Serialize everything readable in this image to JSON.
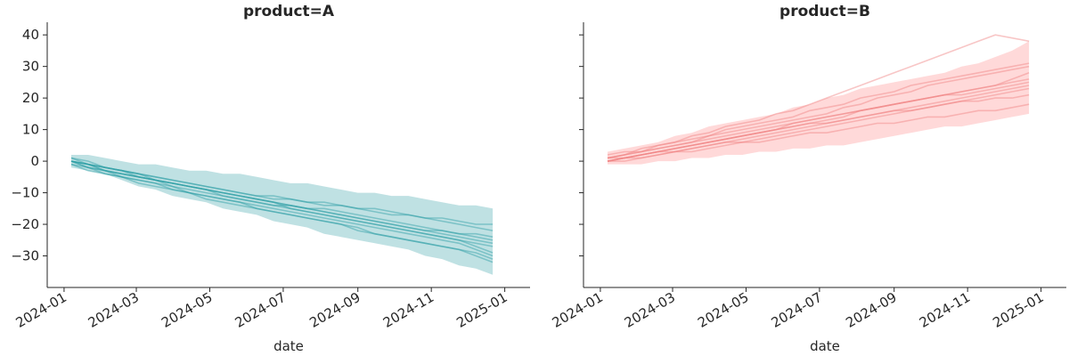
{
  "chart_data": [
    {
      "type": "line",
      "panel": "left",
      "title": "product=A",
      "xlabel": "date",
      "ylabel": "",
      "x_ticks": [
        "2024-01",
        "2024-03",
        "2024-05",
        "2024-07",
        "2024-09",
        "2024-11",
        "2025-01"
      ],
      "y_ticks": [
        -30,
        -20,
        -10,
        0,
        10,
        20,
        30,
        40
      ],
      "xlim": [
        "2023-12-18",
        "2025-01-22"
      ],
      "ylim": [
        -40,
        44
      ],
      "color": "#2a9ea5",
      "band_color": "#7fc4c7",
      "x": [
        "2024-01-07",
        "2024-01-21",
        "2024-02-04",
        "2024-02-18",
        "2024-03-03",
        "2024-03-17",
        "2024-03-31",
        "2024-04-14",
        "2024-04-28",
        "2024-05-12",
        "2024-05-26",
        "2024-06-09",
        "2024-06-23",
        "2024-07-07",
        "2024-07-21",
        "2024-08-04",
        "2024-08-18",
        "2024-09-01",
        "2024-09-15",
        "2024-09-29",
        "2024-10-13",
        "2024-10-27",
        "2024-11-10",
        "2024-11-24",
        "2024-12-08",
        "2024-12-22"
      ],
      "band": {
        "upper": [
          2,
          2,
          1,
          0,
          -1,
          -1,
          -2,
          -3,
          -3,
          -4,
          -4,
          -5,
          -6,
          -7,
          -7,
          -8,
          -9,
          -10,
          -10,
          -11,
          -11,
          -12,
          -13,
          -14,
          -14,
          -15
        ],
        "lower": [
          -2,
          -3,
          -4,
          -6,
          -8,
          -9,
          -11,
          -12,
          -13,
          -15,
          -16,
          -17,
          -19,
          -20,
          -21,
          -23,
          -24,
          -25,
          -26,
          -27,
          -28,
          -30,
          -31,
          -33,
          -34,
          -36
        ]
      },
      "series": [
        {
          "values": [
            0,
            -2,
            -3,
            -4,
            -5,
            -6,
            -7,
            -8,
            -9,
            -10,
            -11,
            -12,
            -13,
            -14,
            -15,
            -16,
            -17,
            -18,
            -19,
            -20,
            -21,
            -22,
            -23,
            -24,
            -25,
            -26
          ]
        },
        {
          "values": [
            0,
            -1,
            -3,
            -4,
            -5,
            -6,
            -8,
            -9,
            -10,
            -11,
            -12,
            -13,
            -14,
            -15,
            -16,
            -17,
            -18,
            -19,
            -20,
            -21,
            -22,
            -23,
            -24,
            -25,
            -27,
            -29
          ]
        },
        {
          "values": [
            1,
            -1,
            -2,
            -3,
            -4,
            -5,
            -6,
            -7,
            -8,
            -9,
            -10,
            -11,
            -12,
            -12,
            -13,
            -14,
            -14,
            -15,
            -16,
            -17,
            -17,
            -18,
            -19,
            -20,
            -21,
            -22
          ]
        },
        {
          "values": [
            -1,
            -2,
            -4,
            -5,
            -6,
            -7,
            -9,
            -10,
            -11,
            -12,
            -13,
            -14,
            -15,
            -16,
            -17,
            -18,
            -19,
            -20,
            -21,
            -22,
            -23,
            -24,
            -25,
            -26,
            -28,
            -30
          ]
        },
        {
          "values": [
            0,
            -2,
            -3,
            -5,
            -6,
            -7,
            -8,
            -10,
            -11,
            -12,
            -13,
            -15,
            -16,
            -17,
            -18,
            -19,
            -20,
            -21,
            -23,
            -24,
            -25,
            -26,
            -27,
            -28,
            -30,
            -32
          ]
        },
        {
          "values": [
            0,
            -1,
            -2,
            -3,
            -4,
            -5,
            -6,
            -7,
            -8,
            -9,
            -10,
            -11,
            -11,
            -12,
            -13,
            -13,
            -14,
            -15,
            -15,
            -16,
            -17,
            -18,
            -18,
            -19,
            -20,
            -20
          ]
        },
        {
          "values": [
            -1,
            -3,
            -4,
            -5,
            -7,
            -8,
            -9,
            -10,
            -12,
            -13,
            -14,
            -15,
            -16,
            -17,
            -18,
            -19,
            -20,
            -22,
            -23,
            -24,
            -25,
            -26,
            -27,
            -28,
            -29,
            -31
          ]
        },
        {
          "values": [
            0,
            -1,
            -3,
            -4,
            -5,
            -6,
            -7,
            -8,
            -9,
            -11,
            -12,
            -13,
            -14,
            -14,
            -15,
            -16,
            -17,
            -18,
            -19,
            -20,
            -21,
            -22,
            -22,
            -23,
            -24,
            -25
          ]
        },
        {
          "values": [
            1,
            0,
            -2,
            -3,
            -4,
            -6,
            -7,
            -8,
            -9,
            -10,
            -11,
            -12,
            -13,
            -15,
            -16,
            -17,
            -18,
            -19,
            -20,
            -21,
            -22,
            -23,
            -24,
            -25,
            -26,
            -27
          ]
        },
        {
          "values": [
            0,
            -1,
            -2,
            -3,
            -5,
            -6,
            -7,
            -8,
            -9,
            -10,
            -11,
            -12,
            -13,
            -14,
            -15,
            -15,
            -16,
            -17,
            -18,
            -19,
            -20,
            -21,
            -22,
            -23,
            -23,
            -24
          ]
        }
      ]
    },
    {
      "type": "line",
      "panel": "right",
      "title": "product=B",
      "xlabel": "date",
      "ylabel": "",
      "x_ticks": [
        "2024-01",
        "2024-03",
        "2024-05",
        "2024-07",
        "2024-09",
        "2024-11",
        "2025-01"
      ],
      "y_ticks": [
        -30,
        -20,
        -10,
        0,
        10,
        20,
        30,
        40
      ],
      "xlim": [
        "2023-12-18",
        "2025-01-22"
      ],
      "ylim": [
        -40,
        44
      ],
      "color": "#f08080",
      "band_color": "#ffb3b3",
      "x": [
        "2024-01-07",
        "2024-01-21",
        "2024-02-04",
        "2024-02-18",
        "2024-03-03",
        "2024-03-17",
        "2024-03-31",
        "2024-04-14",
        "2024-04-28",
        "2024-05-12",
        "2024-05-26",
        "2024-06-09",
        "2024-06-23",
        "2024-07-07",
        "2024-07-21",
        "2024-08-04",
        "2024-08-18",
        "2024-09-01",
        "2024-09-15",
        "2024-09-29",
        "2024-10-13",
        "2024-10-27",
        "2024-11-10",
        "2024-11-24",
        "2024-12-08",
        "2024-12-22"
      ],
      "band": {
        "upper": [
          3,
          4,
          5,
          6,
          8,
          9,
          11,
          12,
          13,
          14,
          15,
          17,
          18,
          20,
          21,
          23,
          24,
          25,
          26,
          27,
          28,
          30,
          31,
          33,
          35,
          38
        ],
        "lower": [
          -1,
          -1,
          -1,
          0,
          0,
          1,
          1,
          2,
          2,
          3,
          3,
          4,
          4,
          5,
          5,
          6,
          7,
          8,
          9,
          10,
          11,
          11,
          12,
          13,
          14,
          15
        ]
      },
      "series": [
        {
          "values": [
            1,
            2,
            3,
            4,
            5,
            6,
            7,
            8,
            9,
            10,
            11,
            12,
            13,
            14,
            15,
            16,
            17,
            18,
            19,
            20,
            21,
            22,
            23,
            24,
            25,
            26
          ]
        },
        {
          "values": [
            0,
            1,
            2,
            3,
            4,
            5,
            6,
            7,
            8,
            9,
            10,
            11,
            12,
            13,
            14,
            16,
            17,
            18,
            19,
            20,
            21,
            22,
            23,
            24,
            26,
            28
          ]
        },
        {
          "values": [
            2,
            3,
            3,
            4,
            5,
            6,
            8,
            9,
            10,
            11,
            12,
            13,
            14,
            15,
            17,
            18,
            20,
            21,
            22,
            24,
            25,
            26,
            27,
            28,
            29,
            30
          ]
        },
        {
          "values": [
            0,
            0,
            1,
            2,
            3,
            4,
            5,
            6,
            6,
            7,
            8,
            9,
            10,
            11,
            12,
            13,
            14,
            15,
            16,
            17,
            18,
            19,
            20,
            21,
            22,
            23
          ]
        },
        {
          "values": [
            1,
            1,
            2,
            3,
            4,
            5,
            6,
            7,
            8,
            9,
            10,
            12,
            13,
            14,
            15,
            16,
            17,
            18,
            19,
            20,
            21,
            21,
            22,
            23,
            24,
            25
          ]
        },
        {
          "values": [
            0,
            1,
            1,
            2,
            3,
            3,
            4,
            5,
            6,
            6,
            7,
            8,
            9,
            9,
            10,
            11,
            12,
            12,
            13,
            14,
            14,
            15,
            16,
            16,
            17,
            18
          ]
        },
        {
          "values": [
            1,
            2,
            3,
            5,
            6,
            7,
            8,
            10,
            11,
            12,
            13,
            14,
            16,
            17,
            18,
            20,
            21,
            22,
            24,
            25,
            26,
            27,
            28,
            29,
            30,
            31
          ]
        },
        {
          "values": [
            0,
            1,
            2,
            3,
            3,
            4,
            5,
            6,
            7,
            8,
            9,
            10,
            11,
            12,
            13,
            14,
            15,
            16,
            17,
            18,
            19,
            20,
            21,
            22,
            23,
            24
          ]
        },
        {
          "values": [
            1,
            2,
            4,
            5,
            6,
            8,
            9,
            11,
            12,
            13,
            15,
            16,
            18,
            20,
            22,
            24,
            26,
            28,
            30,
            32,
            34,
            36,
            38,
            40,
            39,
            38
          ]
        },
        {
          "values": [
            0,
            1,
            2,
            3,
            4,
            5,
            6,
            7,
            8,
            9,
            10,
            11,
            12,
            12,
            13,
            14,
            15,
            16,
            16,
            17,
            18,
            19,
            19,
            20,
            20,
            21
          ]
        }
      ]
    }
  ]
}
